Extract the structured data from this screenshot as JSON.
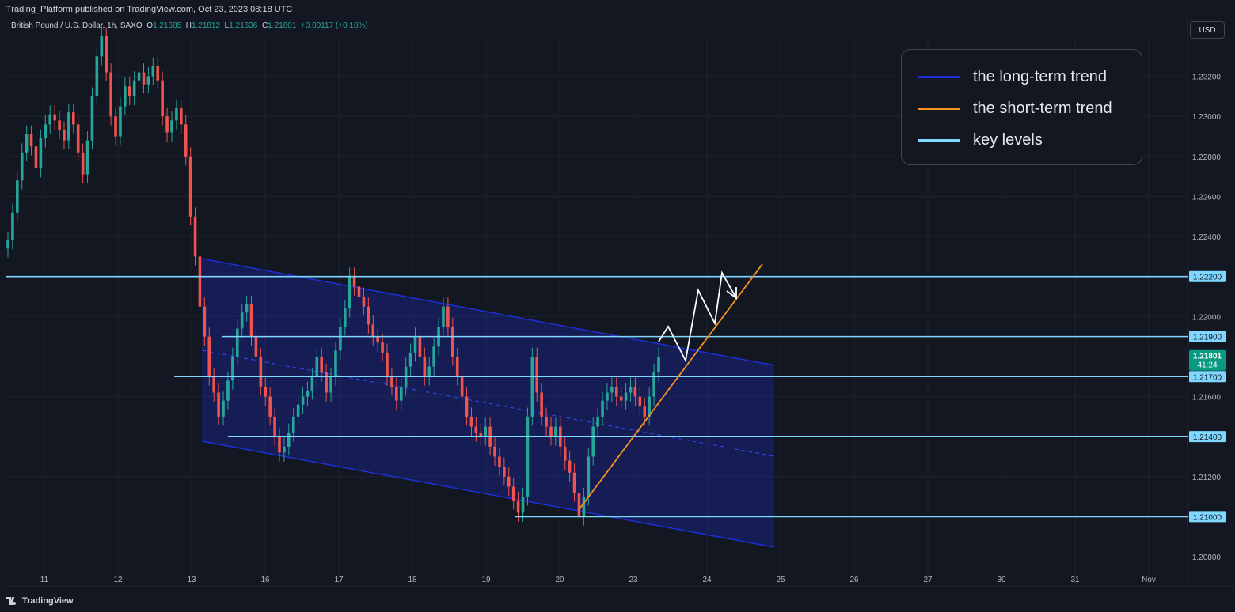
{
  "header": {
    "published": "Trading_Platform published on TradingView.com, Oct 23, 2023 08:18 UTC"
  },
  "symbol": {
    "name": "British Pound / U.S. Dollar, 1h, SAXO",
    "o_label": "O",
    "o": "1.21685",
    "h_label": "H",
    "h": "1.21812",
    "l_label": "L",
    "l": "1.21636",
    "c_label": "C",
    "c": "1.21801",
    "change": "+0.00117 (+0.10%)"
  },
  "currency_button": "USD",
  "footer": {
    "brand": "TradingView"
  },
  "legend": {
    "items": [
      {
        "label": "the long-term trend",
        "color": "#1c2fd8"
      },
      {
        "label": "the short-term trend",
        "color": "#f7931e"
      },
      {
        "label": "key levels",
        "color": "#7fd6ff"
      }
    ]
  },
  "chart_data": {
    "type": "candlestick",
    "y_axis": {
      "ticks": [
        "1.23200",
        "1.23000",
        "1.22800",
        "1.22600",
        "1.22400",
        "1.22000",
        "1.21600",
        "1.21200",
        "1.20800"
      ],
      "tick_values": [
        1.232,
        1.23,
        1.228,
        1.226,
        1.224,
        1.22,
        1.216,
        1.212,
        1.208
      ],
      "range": [
        1.2065,
        1.234
      ],
      "position": "right"
    },
    "x_axis": {
      "ticks": [
        "11",
        "12",
        "13",
        "16",
        "17",
        "18",
        "19",
        "20",
        "23",
        "24",
        "25",
        "26",
        "27",
        "30",
        "31",
        "Nov"
      ]
    },
    "current_price": {
      "value": 1.21801,
      "label": "1.21801",
      "countdown": "41:24",
      "color": "#089981"
    },
    "key_levels": [
      {
        "label": "1.22200",
        "value": 1.222
      },
      {
        "label": "1.21900",
        "value": 1.219
      },
      {
        "label": "1.21700",
        "value": 1.217
      },
      {
        "label": "1.21400",
        "value": 1.214
      },
      {
        "label": "1.21000",
        "value": 1.21
      }
    ],
    "candles_close": [
      1.2238,
      1.2252,
      1.2268,
      1.2282,
      1.2291,
      1.2285,
      1.2274,
      1.2289,
      1.2296,
      1.2301,
      1.2298,
      1.2293,
      1.2288,
      1.2302,
      1.2296,
      1.2282,
      1.2271,
      1.2288,
      1.231,
      1.233,
      1.234,
      1.2322,
      1.23,
      1.229,
      1.2305,
      1.2315,
      1.231,
      1.2318,
      1.2322,
      1.2316,
      1.232,
      1.2325,
      1.2318,
      1.23,
      1.2292,
      1.2298,
      1.2304,
      1.2296,
      1.228,
      1.225,
      1.223,
      1.2205,
      1.219,
      1.217,
      1.2162,
      1.215,
      1.2158,
      1.2168,
      1.218,
      1.2194,
      1.2202,
      1.2206,
      1.219,
      1.218,
      1.2165,
      1.216,
      1.215,
      1.214,
      1.2132,
      1.2135,
      1.2142,
      1.215,
      1.2156,
      1.216,
      1.2163,
      1.217,
      1.218,
      1.2172,
      1.2162,
      1.217,
      1.2183,
      1.2195,
      1.2204,
      1.222,
      1.2215,
      1.221,
      1.2205,
      1.2196,
      1.219,
      1.2187,
      1.2182,
      1.217,
      1.2165,
      1.2158,
      1.2165,
      1.2175,
      1.2182,
      1.219,
      1.218,
      1.217,
      1.2175,
      1.2185,
      1.2195,
      1.2205,
      1.2195,
      1.218,
      1.217,
      1.216,
      1.215,
      1.2145,
      1.2142,
      1.214,
      1.2145,
      1.2135,
      1.213,
      1.2125,
      1.212,
      1.2115,
      1.2108,
      1.2102,
      1.211,
      1.215,
      1.218,
      1.2162,
      1.215,
      1.2145,
      1.214,
      1.2145,
      1.2135,
      1.2128,
      1.2122,
      1.2112,
      1.21,
      1.211,
      1.213,
      1.2145,
      1.215,
      1.2158,
      1.2162,
      1.2165,
      1.216,
      1.2158,
      1.2162,
      1.2165,
      1.216,
      1.2155,
      1.215,
      1.216,
      1.2172,
      1.218
    ]
  }
}
